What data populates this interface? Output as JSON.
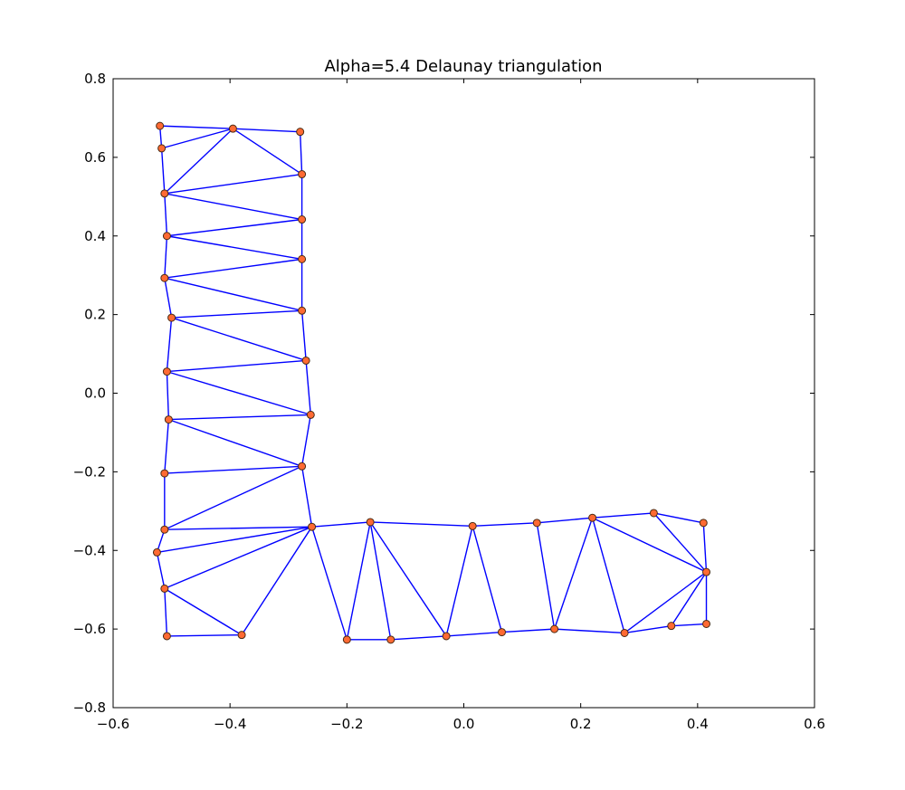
{
  "chart_data": {
    "type": "scatter",
    "title": "Alpha=5.4 Delaunay triangulation",
    "xlabel": "",
    "ylabel": "",
    "xlim": [
      -0.6,
      0.6
    ],
    "ylim": [
      -0.8,
      0.8
    ],
    "x_ticks": [
      "−0.6",
      "−0.4",
      "−0.2",
      "0.0",
      "0.2",
      "0.4",
      "0.6"
    ],
    "y_ticks": [
      "0.8",
      "0.6",
      "0.4",
      "0.2",
      "0.0",
      "−0.2",
      "−0.4",
      "−0.6",
      "−0.8"
    ],
    "x_tick_values": [
      -0.6,
      -0.4,
      -0.2,
      0.0,
      0.2,
      0.4,
      0.6
    ],
    "y_tick_values": [
      0.8,
      0.6,
      0.4,
      0.2,
      0.0,
      -0.2,
      -0.4,
      -0.6,
      -0.8
    ],
    "grid": false,
    "colors": {
      "edge": "#0000ff",
      "point_fill": "#ff6a33",
      "point_stroke": "#4a2a12",
      "axes": "#000000"
    },
    "points": [
      [
        -0.52,
        0.68
      ],
      [
        -0.395,
        0.673
      ],
      [
        -0.28,
        0.665
      ],
      [
        -0.517,
        0.623
      ],
      [
        -0.277,
        0.557
      ],
      [
        -0.512,
        0.508
      ],
      [
        -0.277,
        0.442
      ],
      [
        -0.508,
        0.4
      ],
      [
        -0.277,
        0.341
      ],
      [
        -0.512,
        0.293
      ],
      [
        -0.277,
        0.21
      ],
      [
        -0.5,
        0.192
      ],
      [
        -0.27,
        0.083
      ],
      [
        -0.508,
        0.055
      ],
      [
        -0.262,
        -0.055
      ],
      [
        -0.505,
        -0.067
      ],
      [
        -0.277,
        -0.186
      ],
      [
        -0.512,
        -0.204
      ],
      [
        -0.512,
        -0.347
      ],
      [
        -0.26,
        -0.34
      ],
      [
        -0.16,
        -0.328
      ],
      [
        -0.525,
        -0.405
      ],
      [
        -0.512,
        -0.497
      ],
      [
        -0.508,
        -0.618
      ],
      [
        -0.38,
        -0.615
      ],
      [
        -0.2,
        -0.627
      ],
      [
        -0.125,
        -0.627
      ],
      [
        -0.03,
        -0.618
      ],
      [
        0.015,
        -0.338
      ],
      [
        0.065,
        -0.608
      ],
      [
        0.125,
        -0.33
      ],
      [
        0.155,
        -0.6
      ],
      [
        0.22,
        -0.317
      ],
      [
        0.275,
        -0.61
      ],
      [
        0.325,
        -0.305
      ],
      [
        0.355,
        -0.592
      ],
      [
        0.41,
        -0.33
      ],
      [
        0.415,
        -0.455
      ],
      [
        0.415,
        -0.587
      ]
    ],
    "edges": [
      [
        0,
        1
      ],
      [
        1,
        2
      ],
      [
        2,
        4
      ],
      [
        0,
        3
      ],
      [
        1,
        3
      ],
      [
        1,
        4
      ],
      [
        1,
        5
      ],
      [
        3,
        5
      ],
      [
        4,
        5
      ],
      [
        4,
        6
      ],
      [
        5,
        6
      ],
      [
        5,
        7
      ],
      [
        6,
        7
      ],
      [
        6,
        8
      ],
      [
        7,
        8
      ],
      [
        7,
        9
      ],
      [
        8,
        9
      ],
      [
        8,
        10
      ],
      [
        9,
        10
      ],
      [
        9,
        11
      ],
      [
        10,
        11
      ],
      [
        10,
        12
      ],
      [
        11,
        12
      ],
      [
        11,
        13
      ],
      [
        12,
        13
      ],
      [
        12,
        14
      ],
      [
        13,
        14
      ],
      [
        13,
        15
      ],
      [
        14,
        15
      ],
      [
        14,
        16
      ],
      [
        15,
        16
      ],
      [
        15,
        17
      ],
      [
        16,
        17
      ],
      [
        16,
        18
      ],
      [
        17,
        18
      ],
      [
        16,
        19
      ],
      [
        18,
        19
      ],
      [
        18,
        21
      ],
      [
        21,
        19
      ],
      [
        21,
        22
      ],
      [
        19,
        22
      ],
      [
        22,
        23
      ],
      [
        22,
        24
      ],
      [
        23,
        24
      ],
      [
        19,
        24
      ],
      [
        19,
        25
      ],
      [
        19,
        20
      ],
      [
        20,
        25
      ],
      [
        20,
        26
      ],
      [
        25,
        26
      ],
      [
        20,
        27
      ],
      [
        26,
        27
      ],
      [
        20,
        28
      ],
      [
        27,
        28
      ],
      [
        28,
        29
      ],
      [
        27,
        29
      ],
      [
        28,
        30
      ],
      [
        29,
        31
      ],
      [
        30,
        31
      ],
      [
        30,
        32
      ],
      [
        31,
        32
      ],
      [
        32,
        33
      ],
      [
        31,
        33
      ],
      [
        32,
        34
      ],
      [
        32,
        37
      ],
      [
        34,
        36
      ],
      [
        34,
        37
      ],
      [
        36,
        37
      ],
      [
        33,
        37
      ],
      [
        33,
        35
      ],
      [
        35,
        37
      ],
      [
        35,
        38
      ],
      [
        37,
        38
      ]
    ]
  }
}
